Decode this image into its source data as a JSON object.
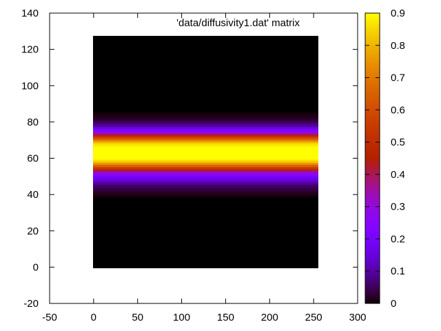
{
  "chart_data": {
    "type": "heatmap",
    "title": "",
    "xlabel": "",
    "ylabel": "",
    "legend": [
      {
        "label": "'data/diffusivity1.dat' matrix",
        "position": "top-right"
      }
    ],
    "xlim": [
      -50,
      300
    ],
    "ylim": [
      -20,
      140
    ],
    "xticks": [
      -50,
      0,
      50,
      100,
      150,
      200,
      250,
      300
    ],
    "yticks": [
      -20,
      0,
      20,
      40,
      60,
      80,
      100,
      120,
      140
    ],
    "matrix_x_range": [
      0,
      255
    ],
    "matrix_y_range": [
      0,
      127
    ],
    "value_varies_along": "y",
    "profile_y": [
      0,
      20,
      38,
      40,
      45,
      50,
      52,
      54,
      56,
      58,
      60,
      62,
      64,
      66,
      68,
      70,
      72,
      74,
      76,
      78,
      80,
      82,
      84,
      86,
      88,
      100,
      127
    ],
    "profile_values": [
      0.0,
      0.0,
      0.0,
      0.01,
      0.06,
      0.2,
      0.3,
      0.48,
      0.66,
      0.82,
      0.9,
      0.91,
      0.91,
      0.9,
      0.86,
      0.72,
      0.52,
      0.32,
      0.2,
      0.1,
      0.05,
      0.02,
      0.01,
      0.0,
      0.0,
      0.0,
      0.0
    ],
    "colorbar": {
      "range": [
        0,
        0.9
      ],
      "ticks": [
        0,
        0.1,
        0.2,
        0.3,
        0.4,
        0.5,
        0.6,
        0.7,
        0.8,
        0.9
      ],
      "tick_labels": [
        "0",
        "0.1",
        "0.2",
        "0.3",
        "0.4",
        "0.5",
        "0.6",
        "0.7",
        "0.8",
        "0.9"
      ],
      "palette": "gnuplot rgbformulae 7,5,15 (black-blue-violet-red-yellow)"
    },
    "grid": false
  }
}
